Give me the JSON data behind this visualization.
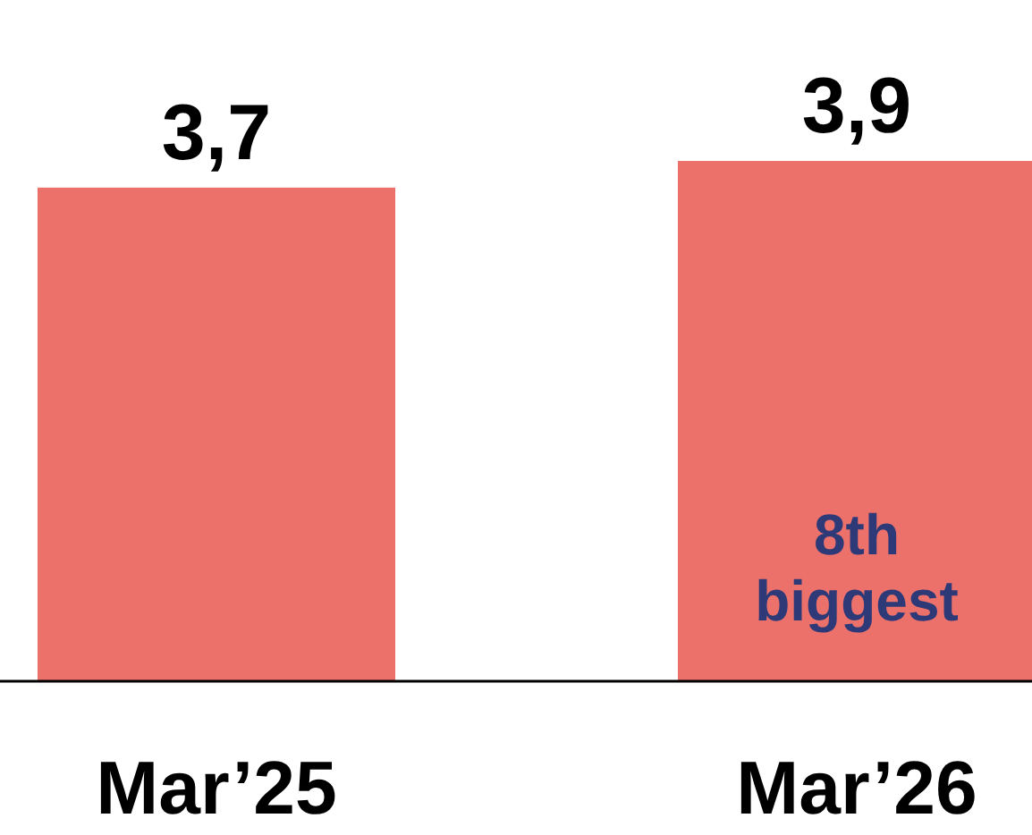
{
  "chart_data": {
    "type": "bar",
    "categories": [
      "Mar’25",
      "Mar’26"
    ],
    "values": [
      3.7,
      3.9
    ],
    "color": "#ec716b",
    "value_labels": [
      "3,7",
      "3,9"
    ],
    "annotations": [
      "8th biggest"
    ]
  }
}
